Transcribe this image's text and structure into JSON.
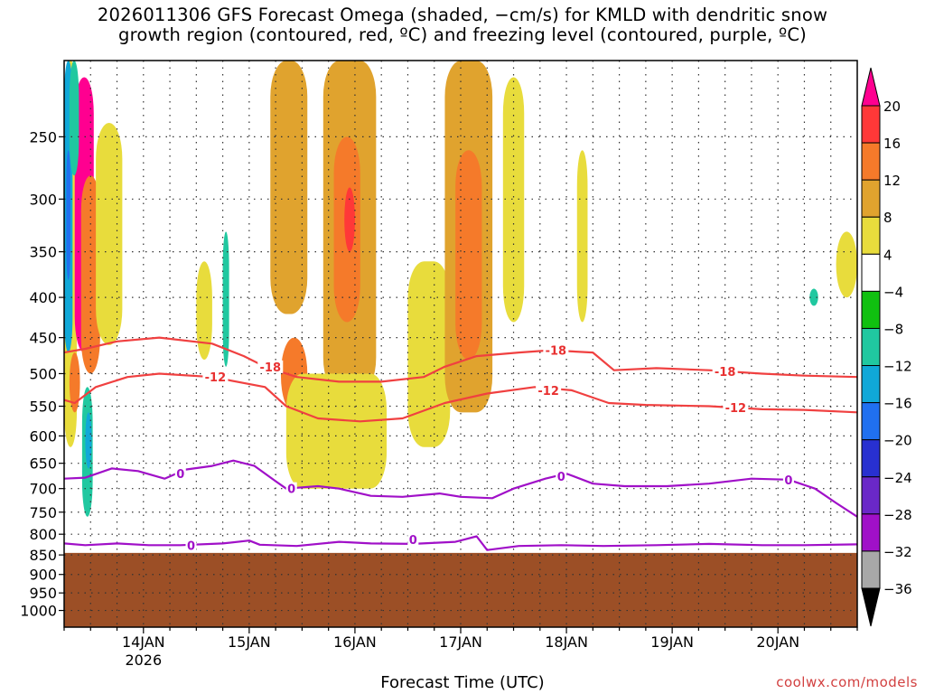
{
  "title_lines": [
    "2026011306 GFS Forecast Omega (shaded, −cm/s) for KMLD with dendritic snow",
    "growth region (contoured, red, ºC) and freezing level (contoured, purple, ºC)"
  ],
  "credit": "coolwx.com/models",
  "chart_data": {
    "type": "heatmap",
    "title": "2026011306 GFS Forecast Omega (shaded, −cm/s) for KMLD with dendritic snow growth region (contoured, red, ºC) and freezing level (contoured, purple, ºC)",
    "xlabel": "Forecast Time (UTC)",
    "ylabel": "",
    "x_range": [
      "2026-01-13T06Z",
      "2026-01-20T18Z"
    ],
    "x_ticks": [
      {
        "label": "14JAN",
        "sub": "2026",
        "t": 0.75
      },
      {
        "label": "15JAN",
        "t": 1.75
      },
      {
        "label": "16JAN",
        "t": 2.75
      },
      {
        "label": "17JAN",
        "t": 3.75
      },
      {
        "label": "18JAN",
        "t": 4.75
      },
      {
        "label": "19JAN",
        "t": 5.75
      },
      {
        "label": "20JAN",
        "t": 6.75
      }
    ],
    "t_max_days": 7.5,
    "y_axis": "pressure (hPa, log scale, inverted)",
    "y_range": [
      1050,
      200
    ],
    "y_ticks": [
      250,
      300,
      350,
      400,
      450,
      500,
      550,
      600,
      650,
      700,
      750,
      800,
      850,
      900,
      950,
      1000
    ],
    "ground_pressure": 845,
    "colorbar": {
      "levels": [
        20,
        16,
        12,
        8,
        4,
        -4,
        -8,
        -12,
        -16,
        -20,
        -24,
        -28,
        -32,
        -36
      ],
      "colors": [
        "#ff0090",
        "#ff3838",
        "#f57a2a",
        "#e0a32e",
        "#e8dc3c",
        "#ffffff",
        "#10c010",
        "#20c8a0",
        "#10a8d8",
        "#2070f0",
        "#2830d0",
        "#6a28c8",
        "#a010c8",
        "#a8a8a8",
        "#000000"
      ]
    },
    "ground_color": "#9c4f26",
    "omega_regions": [
      {
        "t0": 0.0,
        "t1": 0.12,
        "p0": 200,
        "p1": 620,
        "level": 4
      },
      {
        "t0": 0.1,
        "t1": 0.28,
        "p0": 210,
        "p1": 470,
        "level": 20
      },
      {
        "t0": 0.16,
        "t1": 0.34,
        "p0": 280,
        "p1": 500,
        "level": 12
      },
      {
        "t0": 0.05,
        "t1": 0.15,
        "p0": 470,
        "p1": 560,
        "level": 12
      },
      {
        "t0": 0.3,
        "t1": 0.55,
        "p0": 240,
        "p1": 460,
        "level": 4
      },
      {
        "t0": 1.25,
        "t1": 1.4,
        "p0": 360,
        "p1": 480,
        "level": 4
      },
      {
        "t0": 1.95,
        "t1": 2.3,
        "p0": 200,
        "p1": 420,
        "level": 8
      },
      {
        "t0": 2.05,
        "t1": 2.3,
        "p0": 450,
        "p1": 560,
        "level": 12
      },
      {
        "t0": 2.45,
        "t1": 2.95,
        "p0": 200,
        "p1": 530,
        "level": 8
      },
      {
        "t0": 2.55,
        "t1": 2.8,
        "p0": 250,
        "p1": 430,
        "level": 12
      },
      {
        "t0": 2.65,
        "t1": 2.75,
        "p0": 290,
        "p1": 350,
        "level": 16
      },
      {
        "t0": 2.1,
        "t1": 3.05,
        "p0": 500,
        "p1": 700,
        "level": 4
      },
      {
        "t0": 3.25,
        "t1": 3.65,
        "p0": 360,
        "p1": 620,
        "level": 4
      },
      {
        "t0": 3.6,
        "t1": 4.05,
        "p0": 200,
        "p1": 560,
        "level": 8
      },
      {
        "t0": 3.7,
        "t1": 3.95,
        "p0": 260,
        "p1": 480,
        "level": 12
      },
      {
        "t0": 4.15,
        "t1": 4.35,
        "p0": 210,
        "p1": 430,
        "level": 4
      },
      {
        "t0": 4.85,
        "t1": 4.95,
        "p0": 260,
        "p1": 430,
        "level": 4
      },
      {
        "t0": 7.3,
        "t1": 7.5,
        "p0": 330,
        "p1": 400,
        "level": 4
      },
      {
        "t0": 0.0,
        "t1": 0.08,
        "p0": 200,
        "p1": 470,
        "level": -12
      },
      {
        "t0": 0.02,
        "t1": 0.06,
        "p0": 260,
        "p1": 380,
        "level": -16
      },
      {
        "t0": 0.05,
        "t1": 0.14,
        "p0": 200,
        "p1": 280,
        "level": -8
      },
      {
        "t0": 0.17,
        "t1": 0.27,
        "p0": 520,
        "p1": 760,
        "level": -8
      },
      {
        "t0": 0.2,
        "t1": 0.26,
        "p0": 560,
        "p1": 660,
        "level": -12
      },
      {
        "t0": 1.5,
        "t1": 1.56,
        "p0": 330,
        "p1": 490,
        "level": -8
      },
      {
        "t0": 7.05,
        "t1": 7.13,
        "p0": 390,
        "p1": 410,
        "level": -8
      }
    ],
    "dgz_minus12": [
      [
        0.0,
        540
      ],
      [
        0.1,
        545
      ],
      [
        0.3,
        520
      ],
      [
        0.6,
        505
      ],
      [
        0.9,
        500
      ],
      [
        1.4,
        505
      ],
      [
        1.9,
        520
      ],
      [
        2.1,
        550
      ],
      [
        2.4,
        570
      ],
      [
        2.8,
        575
      ],
      [
        3.2,
        570
      ],
      [
        3.6,
        545
      ],
      [
        4.0,
        530
      ],
      [
        4.45,
        520
      ],
      [
        4.8,
        525
      ],
      [
        5.15,
        545
      ],
      [
        5.5,
        548
      ],
      [
        6.1,
        550
      ],
      [
        6.6,
        555
      ],
      [
        7.0,
        556
      ],
      [
        7.5,
        560
      ]
    ],
    "dgz_minus18": [
      [
        0.0,
        470
      ],
      [
        0.2,
        465
      ],
      [
        0.5,
        455
      ],
      [
        0.9,
        450
      ],
      [
        1.4,
        458
      ],
      [
        1.7,
        475
      ],
      [
        1.9,
        490
      ],
      [
        2.2,
        505
      ],
      [
        2.6,
        512
      ],
      [
        3.0,
        512
      ],
      [
        3.4,
        505
      ],
      [
        3.6,
        490
      ],
      [
        3.9,
        475
      ],
      [
        4.3,
        470
      ],
      [
        4.6,
        467
      ],
      [
        5.0,
        470
      ],
      [
        5.2,
        495
      ],
      [
        5.6,
        492
      ],
      [
        6.1,
        495
      ],
      [
        6.6,
        500
      ],
      [
        7.0,
        503
      ],
      [
        7.5,
        505
      ]
    ],
    "freezing_upper": [
      [
        0.0,
        680
      ],
      [
        0.2,
        678
      ],
      [
        0.45,
        660
      ],
      [
        0.7,
        665
      ],
      [
        0.95,
        680
      ],
      [
        1.15,
        662
      ],
      [
        1.4,
        655
      ],
      [
        1.6,
        645
      ],
      [
        1.8,
        655
      ],
      [
        2.0,
        685
      ],
      [
        2.1,
        700
      ],
      [
        2.4,
        695
      ],
      [
        2.6,
        700
      ],
      [
        2.9,
        715
      ],
      [
        3.2,
        717
      ],
      [
        3.55,
        710
      ],
      [
        3.75,
        717
      ],
      [
        4.05,
        720
      ],
      [
        4.25,
        700
      ],
      [
        4.55,
        680
      ],
      [
        4.75,
        670
      ],
      [
        5.0,
        690
      ],
      [
        5.3,
        695
      ],
      [
        5.7,
        695
      ],
      [
        6.1,
        690
      ],
      [
        6.5,
        680
      ],
      [
        6.85,
        682
      ],
      [
        7.1,
        700
      ],
      [
        7.3,
        730
      ],
      [
        7.5,
        760
      ]
    ],
    "freezing_lower": [
      [
        0.0,
        822
      ],
      [
        0.2,
        826
      ],
      [
        0.5,
        822
      ],
      [
        0.8,
        826
      ],
      [
        1.1,
        826
      ],
      [
        1.5,
        822
      ],
      [
        1.75,
        815
      ],
      [
        1.85,
        825
      ],
      [
        2.2,
        828
      ],
      [
        2.6,
        818
      ],
      [
        2.9,
        822
      ],
      [
        3.3,
        823
      ],
      [
        3.7,
        818
      ],
      [
        3.9,
        805
      ],
      [
        4.0,
        838
      ],
      [
        4.3,
        828
      ],
      [
        4.7,
        826
      ],
      [
        5.1,
        828
      ],
      [
        5.6,
        826
      ],
      [
        6.1,
        823
      ],
      [
        6.6,
        826
      ],
      [
        7.0,
        826
      ],
      [
        7.5,
        824
      ]
    ],
    "contour_labels": [
      {
        "text": "-12",
        "t": 1.43,
        "p": 505,
        "color": "#e83030"
      },
      {
        "text": "-12",
        "t": 4.58,
        "p": 525,
        "color": "#e83030"
      },
      {
        "text": "-12",
        "t": 6.35,
        "p": 552,
        "color": "#e83030"
      },
      {
        "text": "-18",
        "t": 1.95,
        "p": 490,
        "color": "#e83030"
      },
      {
        "text": "-18",
        "t": 4.65,
        "p": 467,
        "color": "#e83030"
      },
      {
        "text": "-18",
        "t": 6.25,
        "p": 497,
        "color": "#e83030"
      },
      {
        "text": "0",
        "t": 1.1,
        "p": 670,
        "color": "#a010c8"
      },
      {
        "text": "0",
        "t": 2.15,
        "p": 700,
        "color": "#a010c8"
      },
      {
        "text": "0",
        "t": 4.7,
        "p": 675,
        "color": "#a010c8"
      },
      {
        "text": "0",
        "t": 6.85,
        "p": 682,
        "color": "#a010c8"
      },
      {
        "text": "0",
        "t": 1.2,
        "p": 826,
        "color": "#a010c8"
      },
      {
        "text": "0",
        "t": 3.3,
        "p": 812,
        "color": "#a010c8"
      }
    ]
  }
}
